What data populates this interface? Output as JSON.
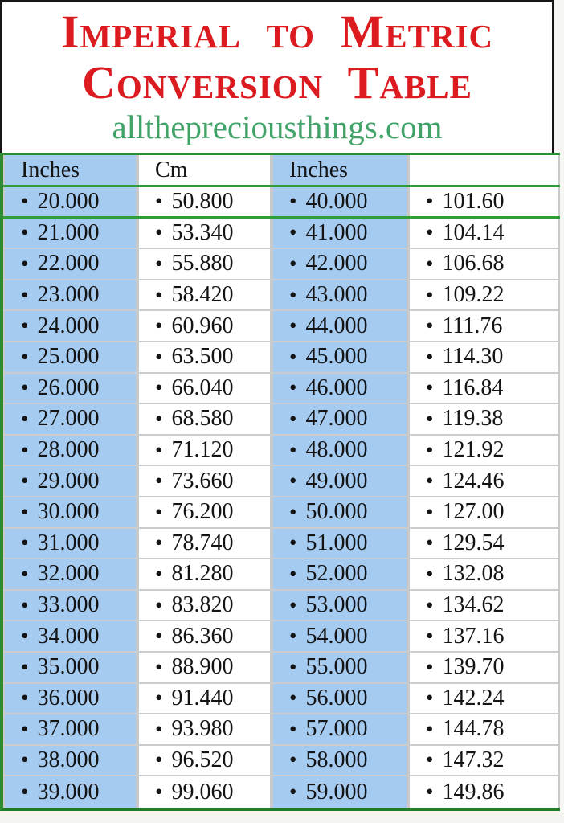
{
  "header": {
    "title_line1": "Imperial to Metric",
    "title_line2": "Conversion Table",
    "website": "allthepreciousthings.com"
  },
  "chart_data": {
    "type": "table",
    "title": "Imperial to Metric Conversion Table",
    "bullet": "•",
    "columns": [
      "Inches",
      "Cm",
      "Inches",
      ""
    ],
    "rows": [
      [
        "20.000",
        "50.800",
        "40.000",
        "101.60"
      ],
      [
        "21.000",
        "53.340",
        "41.000",
        "104.14"
      ],
      [
        "22.000",
        "55.880",
        "42.000",
        "106.68"
      ],
      [
        "23.000",
        "58.420",
        "43.000",
        "109.22"
      ],
      [
        "24.000",
        "60.960",
        "44.000",
        "111.76"
      ],
      [
        "25.000",
        "63.500",
        "45.000",
        "114.30"
      ],
      [
        "26.000",
        "66.040",
        "46.000",
        "116.84"
      ],
      [
        "27.000",
        "68.580",
        "47.000",
        "119.38"
      ],
      [
        "28.000",
        "71.120",
        "48.000",
        "121.92"
      ],
      [
        "29.000",
        "73.660",
        "49.000",
        "124.46"
      ],
      [
        "30.000",
        "76.200",
        "50.000",
        "127.00"
      ],
      [
        "31.000",
        "78.740",
        "51.000",
        "129.54"
      ],
      [
        "32.000",
        "81.280",
        "52.000",
        "132.08"
      ],
      [
        "33.000",
        "83.820",
        "53.000",
        "134.62"
      ],
      [
        "34.000",
        "86.360",
        "54.000",
        "137.16"
      ],
      [
        "35.000",
        "88.900",
        "55.000",
        "139.70"
      ],
      [
        "36.000",
        "91.440",
        "56.000",
        "142.24"
      ],
      [
        "37.000",
        "93.980",
        "57.000",
        "144.78"
      ],
      [
        "38.000",
        "96.520",
        "58.000",
        "147.32"
      ],
      [
        "39.000",
        "99.060",
        "59.000",
        "149.86"
      ]
    ]
  },
  "colors": {
    "title_red": "#dc1b20",
    "website_green": "#41a368",
    "cell_blue": "#a6cbf1",
    "line_green": "#28912f",
    "separator_gray": "#cccccc"
  }
}
